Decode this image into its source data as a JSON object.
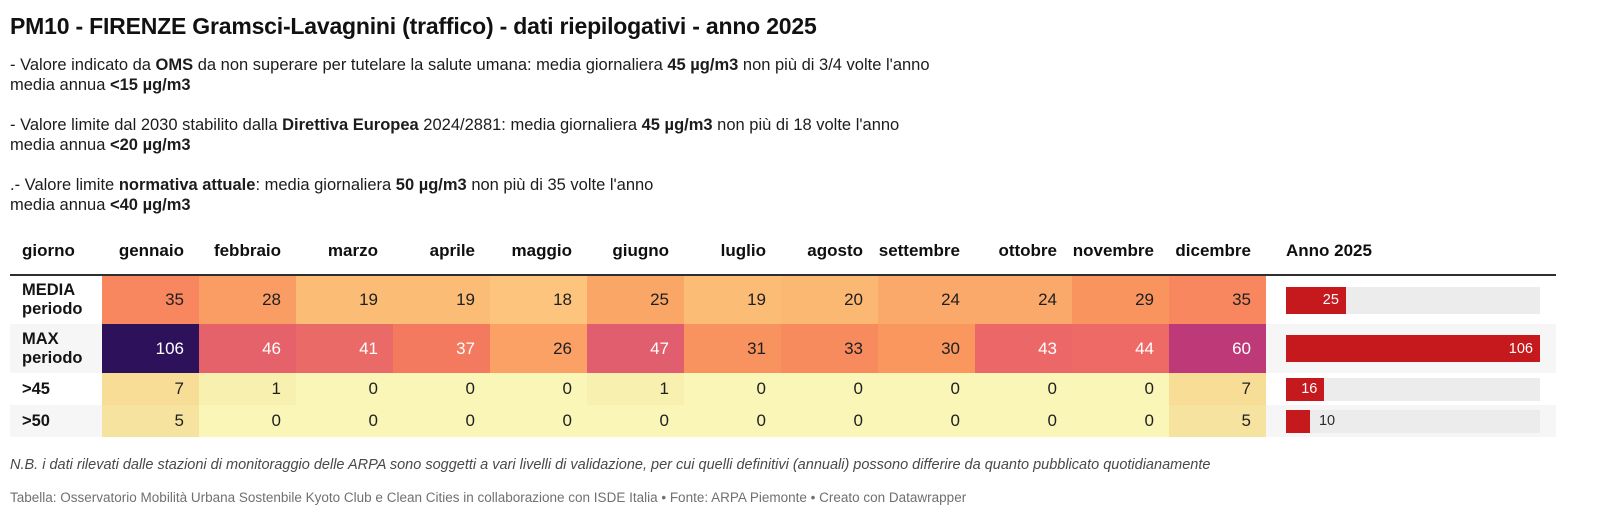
{
  "title": "PM10 - FIRENZE Gramsci-Lavagnini (traffico) - dati riepilogativi - anno 2025",
  "accent": {
    "bar_red": "#c5191d",
    "track_gray": "#ececec",
    "header_rule": "#2e2e2e",
    "zebra": "#f6f6f6"
  },
  "notes": [
    {
      "lines": [
        [
          {
            "t": "- Valore indicato da "
          },
          {
            "t": "OMS",
            "b": 1
          },
          {
            "t": " da non superare per tutelare la salute umana: media giornaliera "
          },
          {
            "t": "45 µg/m3",
            "b": 1
          },
          {
            "t": " non più di 3/4 volte l'anno"
          }
        ],
        [
          {
            "t": "media annua "
          },
          {
            "t": "<15 µg/m3",
            "b": 1
          }
        ]
      ]
    },
    {
      "lines": [
        [
          {
            "t": "- Valore limite dal 2030 stabilito dalla "
          },
          {
            "t": "Direttiva Europea",
            "b": 1
          },
          {
            "t": " 2024/2881: media giornaliera "
          },
          {
            "t": "45 µg/m3",
            "b": 1
          },
          {
            "t": " non più di 18 volte l'anno"
          }
        ],
        [
          {
            "t": "media annua "
          },
          {
            "t": "<20 µg/m3",
            "b": 1
          }
        ]
      ]
    },
    {
      "lines": [
        [
          {
            "t": ".- Valore limite "
          },
          {
            "t": "normativa attuale",
            "b": 1
          },
          {
            "t": ": media giornaliera "
          },
          {
            "t": "50 µg/m3",
            "b": 1
          },
          {
            "t": " non più di 35 volte l'anno"
          }
        ],
        [
          {
            "t": "media annua "
          },
          {
            "t": "<40 µg/m3",
            "b": 1
          }
        ]
      ]
    }
  ],
  "table": {
    "headers": [
      "giorno",
      "gennaio",
      "febbraio",
      "marzo",
      "aprile",
      "maggio",
      "giugno",
      "luglio",
      "agosto",
      "settembre",
      "ottobre",
      "novembre",
      "dicembre",
      "Anno 2025"
    ],
    "bar_scale_max": 106,
    "rows": [
      {
        "label_lines": [
          "MEDIA",
          "periodo"
        ],
        "cells": [
          {
            "v": "35",
            "bg": "#f8875f",
            "fg": "#1f1f1f"
          },
          {
            "v": "28",
            "bg": "#f99d64",
            "fg": "#1f1f1f"
          },
          {
            "v": "19",
            "bg": "#fbbc75",
            "fg": "#1f1f1f"
          },
          {
            "v": "19",
            "bg": "#fbbc75",
            "fg": "#1f1f1f"
          },
          {
            "v": "18",
            "bg": "#fcc47c",
            "fg": "#1f1f1f"
          },
          {
            "v": "25",
            "bg": "#faa667",
            "fg": "#1f1f1f"
          },
          {
            "v": "19",
            "bg": "#fbbc75",
            "fg": "#1f1f1f"
          },
          {
            "v": "20",
            "bg": "#fbb872",
            "fg": "#1f1f1f"
          },
          {
            "v": "24",
            "bg": "#faa96a",
            "fg": "#1f1f1f"
          },
          {
            "v": "24",
            "bg": "#faa96a",
            "fg": "#1f1f1f"
          },
          {
            "v": "29",
            "bg": "#f9945f",
            "fg": "#1f1f1f"
          },
          {
            "v": "35",
            "bg": "#f8875f",
            "fg": "#1f1f1f"
          }
        ],
        "bar": {
          "value": 25,
          "label": "25",
          "inside": true
        }
      },
      {
        "label_lines": [
          "MAX",
          "periodo"
        ],
        "cells": [
          {
            "v": "106",
            "bg": "#2d125b",
            "fg": "#ffffff"
          },
          {
            "v": "46",
            "bg": "#e5626b",
            "fg": "#ffffff"
          },
          {
            "v": "41",
            "bg": "#ea6a67",
            "fg": "#ffffff"
          },
          {
            "v": "37",
            "bg": "#f3795f",
            "fg": "#ffffff"
          },
          {
            "v": "26",
            "bg": "#fba166",
            "fg": "#1f1f1f"
          },
          {
            "v": "47",
            "bg": "#e05e6d",
            "fg": "#ffffff"
          },
          {
            "v": "31",
            "bg": "#f8925e",
            "fg": "#1f1f1f"
          },
          {
            "v": "33",
            "bg": "#f78b5d",
            "fg": "#1f1f1f"
          },
          {
            "v": "30",
            "bg": "#f9975f",
            "fg": "#1f1f1f"
          },
          {
            "v": "43",
            "bg": "#ec6868",
            "fg": "#ffffff"
          },
          {
            "v": "44",
            "bg": "#ee6a66",
            "fg": "#ffffff"
          },
          {
            "v": "60",
            "bg": "#bd3977",
            "fg": "#ffffff"
          }
        ],
        "bar": {
          "value": 106,
          "label": "106",
          "inside": true
        }
      },
      {
        "label_lines": [
          ">45"
        ],
        "cells": [
          {
            "v": "7",
            "bg": "#f7dd96",
            "fg": "#1f1f1f"
          },
          {
            "v": "1",
            "bg": "#f8f0ae",
            "fg": "#1f1f1f"
          },
          {
            "v": "0",
            "bg": "#f9f6b8",
            "fg": "#1f1f1f"
          },
          {
            "v": "0",
            "bg": "#f9f6b8",
            "fg": "#1f1f1f"
          },
          {
            "v": "0",
            "bg": "#f9f6b8",
            "fg": "#1f1f1f"
          },
          {
            "v": "1",
            "bg": "#f8f0ae",
            "fg": "#1f1f1f"
          },
          {
            "v": "0",
            "bg": "#f9f6b8",
            "fg": "#1f1f1f"
          },
          {
            "v": "0",
            "bg": "#f9f6b8",
            "fg": "#1f1f1f"
          },
          {
            "v": "0",
            "bg": "#f9f6b8",
            "fg": "#1f1f1f"
          },
          {
            "v": "0",
            "bg": "#f9f6b8",
            "fg": "#1f1f1f"
          },
          {
            "v": "0",
            "bg": "#f9f6b8",
            "fg": "#1f1f1f"
          },
          {
            "v": "7",
            "bg": "#f7dd96",
            "fg": "#1f1f1f"
          }
        ],
        "bar": {
          "value": 16,
          "label": "16",
          "inside": true
        }
      },
      {
        "label_lines": [
          ">50"
        ],
        "cells": [
          {
            "v": "5",
            "bg": "#f7e3a0",
            "fg": "#1f1f1f"
          },
          {
            "v": "0",
            "bg": "#f9f6b8",
            "fg": "#1f1f1f"
          },
          {
            "v": "0",
            "bg": "#f9f6b8",
            "fg": "#1f1f1f"
          },
          {
            "v": "0",
            "bg": "#f9f6b8",
            "fg": "#1f1f1f"
          },
          {
            "v": "0",
            "bg": "#f9f6b8",
            "fg": "#1f1f1f"
          },
          {
            "v": "0",
            "bg": "#f9f6b8",
            "fg": "#1f1f1f"
          },
          {
            "v": "0",
            "bg": "#f9f6b8",
            "fg": "#1f1f1f"
          },
          {
            "v": "0",
            "bg": "#f9f6b8",
            "fg": "#1f1f1f"
          },
          {
            "v": "0",
            "bg": "#f9f6b8",
            "fg": "#1f1f1f"
          },
          {
            "v": "0",
            "bg": "#f9f6b8",
            "fg": "#1f1f1f"
          },
          {
            "v": "0",
            "bg": "#f9f6b8",
            "fg": "#1f1f1f"
          },
          {
            "v": "5",
            "bg": "#f7e3a0",
            "fg": "#1f1f1f"
          }
        ],
        "bar": {
          "value": 10,
          "label": "10",
          "inside": false
        }
      }
    ]
  },
  "footer": {
    "nb": "N.B. i dati rilevati dalle stazioni di monitoraggio delle ARPA sono soggetti a vari livelli di validazione, per cui quelli definitivi (annuali) possono differire da quanto pubblicato quotidianamente",
    "credits": "Tabella: Osservatorio Mobilità Urbana Sostenbile Kyoto Club e Clean Cities in collaborazione con ISDE Italia • Fonte: ARPA Piemonte • Creato con Datawrapper"
  },
  "chart_data": {
    "type": "table",
    "title": "PM10 - FIRENZE Gramsci-Lavagnini (traffico) - dati riepilogativi - anno 2025",
    "columns": [
      "giorno",
      "gennaio",
      "febbraio",
      "marzo",
      "aprile",
      "maggio",
      "giugno",
      "luglio",
      "agosto",
      "settembre",
      "ottobre",
      "novembre",
      "dicembre",
      "Anno 2025"
    ],
    "rows": [
      {
        "giorno": "MEDIA periodo",
        "values": [
          35,
          28,
          19,
          19,
          18,
          25,
          19,
          20,
          24,
          24,
          29,
          35
        ],
        "anno_2025": 25
      },
      {
        "giorno": "MAX periodo",
        "values": [
          106,
          46,
          41,
          37,
          26,
          47,
          31,
          33,
          30,
          43,
          44,
          60
        ],
        "anno_2025": 106
      },
      {
        "giorno": ">45",
        "values": [
          7,
          1,
          0,
          0,
          0,
          1,
          0,
          0,
          0,
          0,
          0,
          7
        ],
        "anno_2025": 16
      },
      {
        "giorno": ">50",
        "values": [
          5,
          0,
          0,
          0,
          0,
          0,
          0,
          0,
          0,
          0,
          0,
          5
        ],
        "anno_2025": 10
      }
    ],
    "anno_bar_max": 106,
    "heatmap": true,
    "heatmap_palette_low_to_high": [
      "#f9f6b8",
      "#f7dd96",
      "#fcc47c",
      "#f8875f",
      "#e5626b",
      "#bd3977",
      "#2d125b"
    ],
    "bar_color": "#c5191d"
  }
}
